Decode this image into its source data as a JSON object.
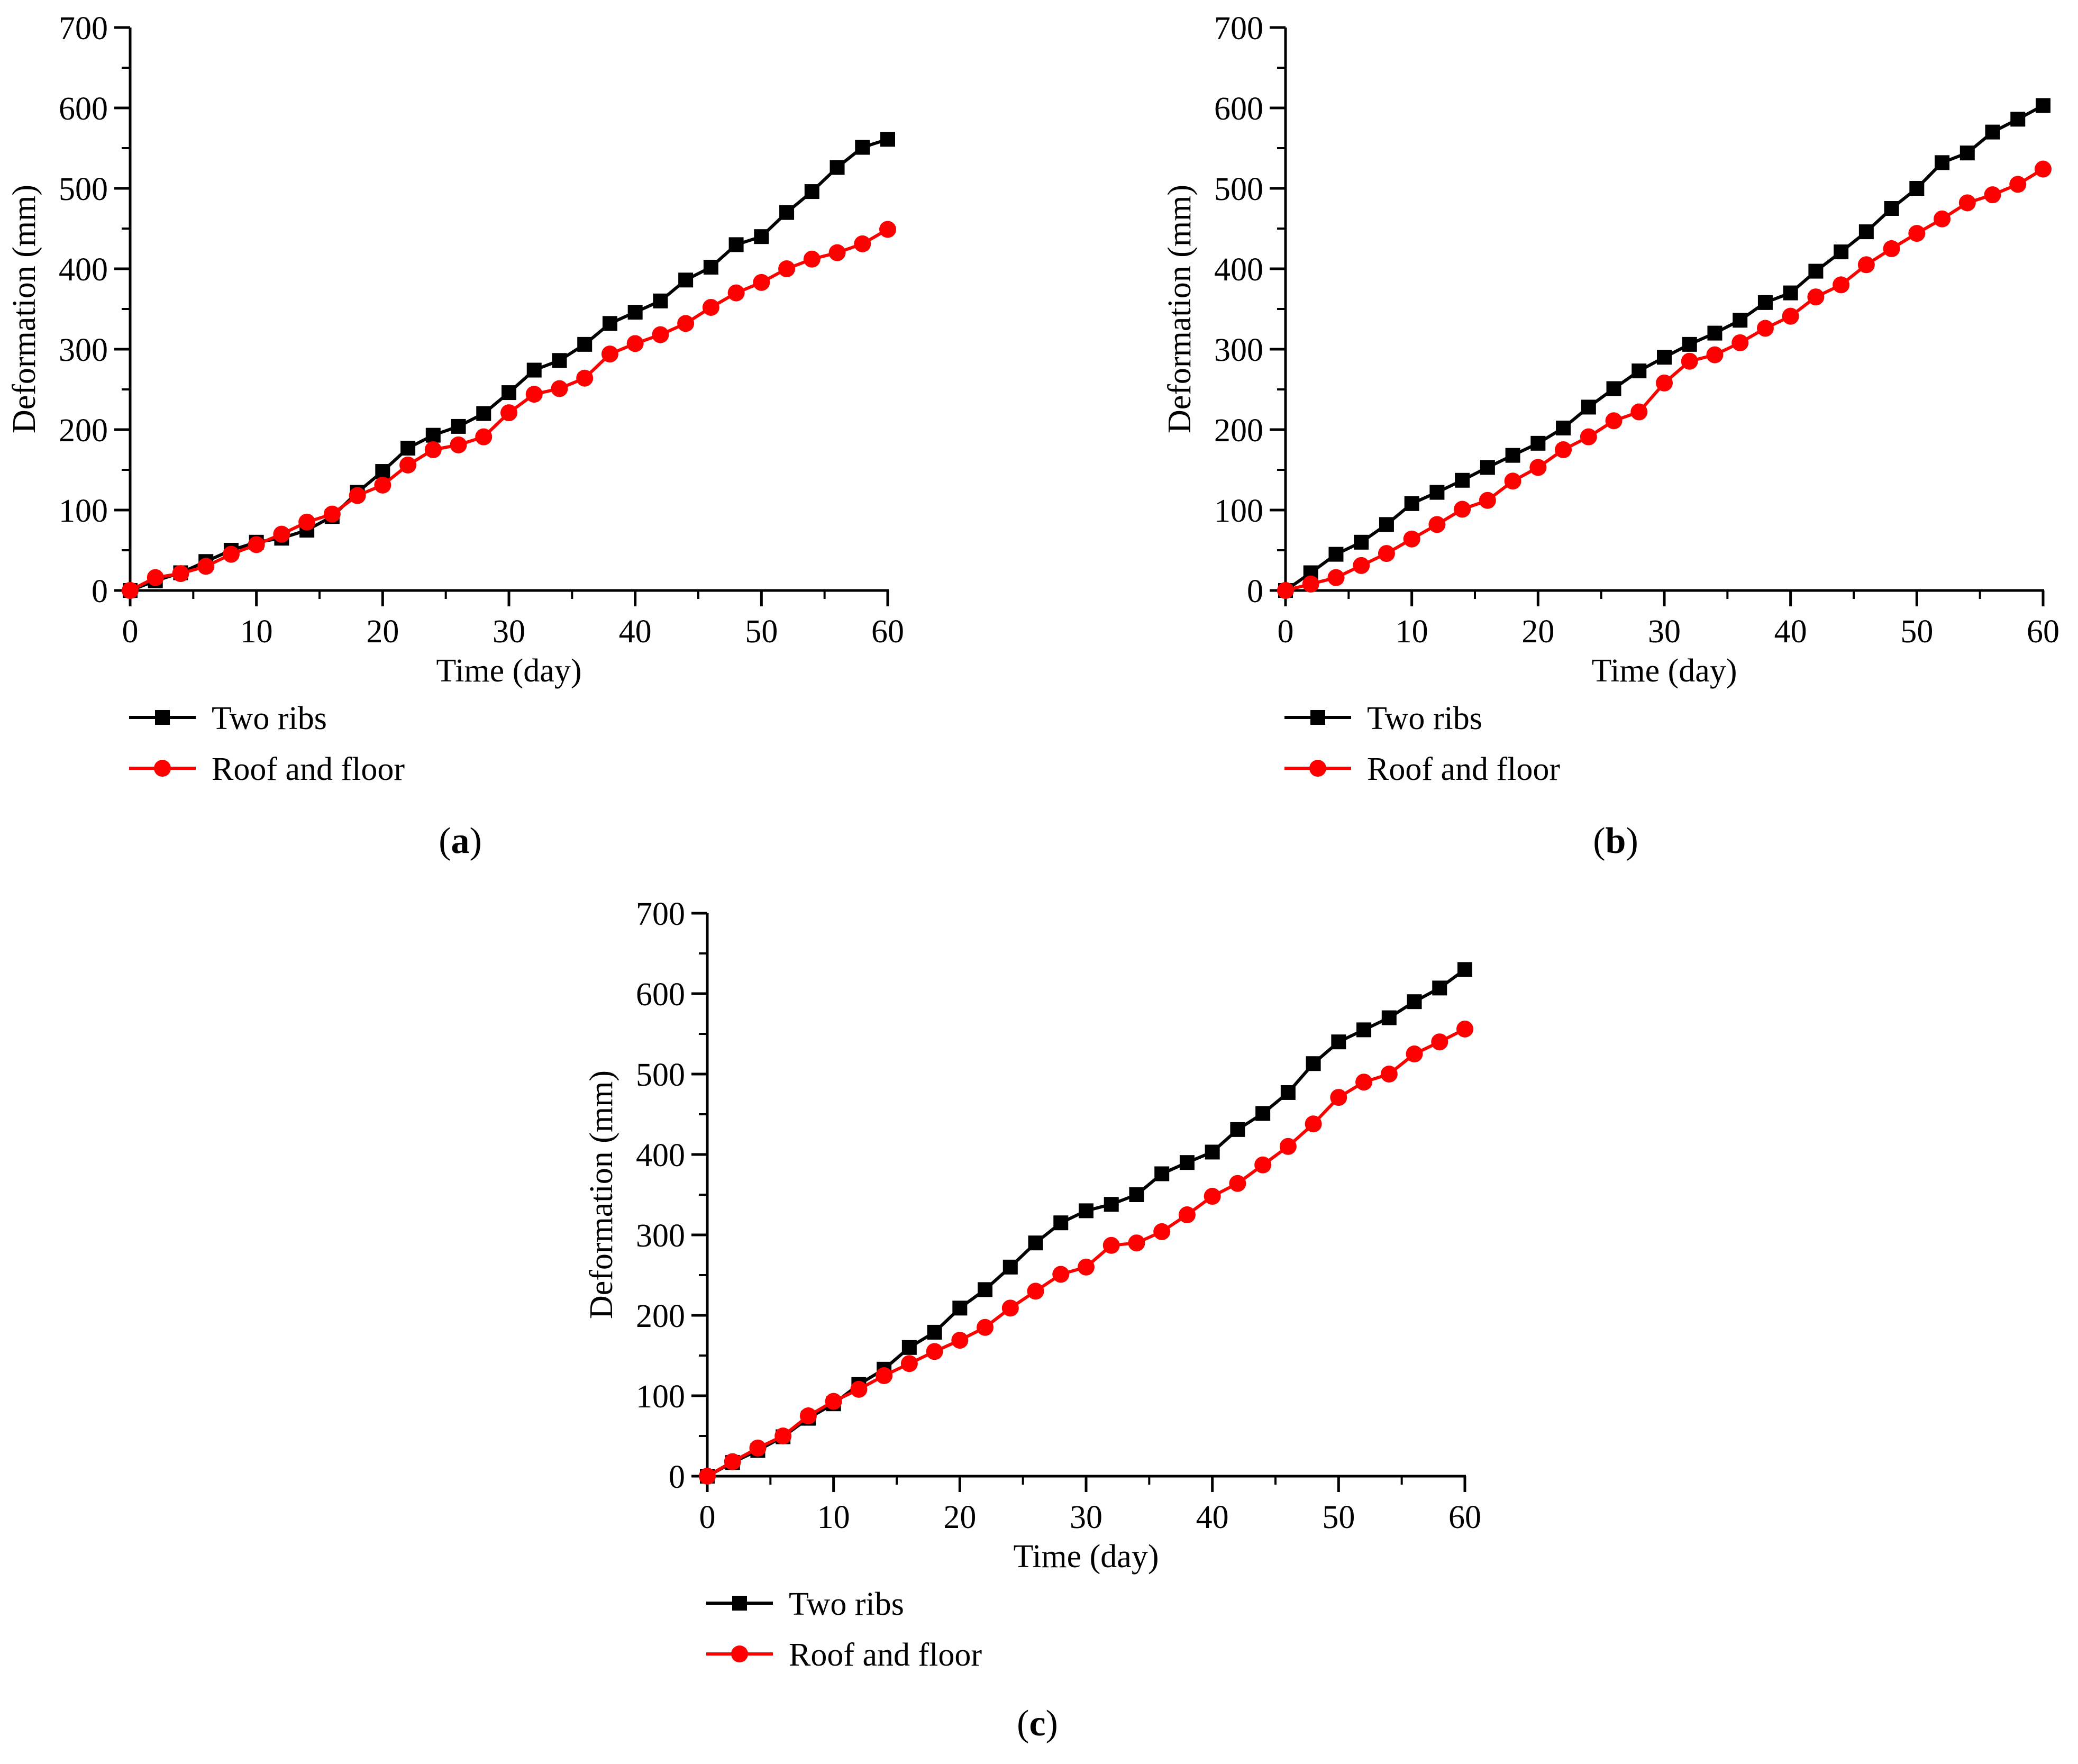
{
  "chart_data": [
    {
      "type": "line",
      "panel_label": "a",
      "xlabel": "Time (day)",
      "ylabel": "Deformation (mm)",
      "xlim": [
        0,
        60
      ],
      "ylim": [
        0,
        700
      ],
      "xticks": [
        "0",
        "10",
        "20",
        "30",
        "40",
        "50",
        "60"
      ],
      "yticks": [
        "0",
        "100",
        "200",
        "300",
        "400",
        "500",
        "600",
        "700"
      ],
      "legend_position": "bottom-left",
      "x": [
        0,
        2,
        4,
        6,
        8,
        10,
        12,
        14,
        16,
        18,
        20,
        22,
        24,
        26,
        28,
        30,
        32,
        34,
        36,
        38,
        40,
        42,
        44,
        46,
        48,
        50,
        52,
        54,
        56,
        58,
        60
      ],
      "series": [
        {
          "name": "Two ribs",
          "color": "#000000",
          "marker": "square",
          "values": [
            0,
            12,
            22,
            36,
            50,
            60,
            65,
            75,
            92,
            122,
            148,
            177,
            193,
            204,
            220,
            246,
            274,
            286,
            306,
            332,
            346,
            360,
            386,
            402,
            430,
            440,
            470,
            496,
            526,
            551,
            561
          ]
        },
        {
          "name": "Roof and floor",
          "color": "#ff0000",
          "marker": "circle",
          "values": [
            0,
            16,
            21,
            30,
            45,
            57,
            70,
            85,
            95,
            118,
            131,
            156,
            175,
            181,
            191,
            221,
            244,
            251,
            264,
            294,
            307,
            318,
            332,
            352,
            370,
            383,
            400,
            412,
            420,
            431,
            449
          ]
        }
      ]
    },
    {
      "type": "line",
      "panel_label": "b",
      "xlabel": "Time (day)",
      "ylabel": "Deformation (mm)",
      "xlim": [
        0,
        60
      ],
      "ylim": [
        0,
        700
      ],
      "xticks": [
        "0",
        "10",
        "20",
        "30",
        "40",
        "50",
        "60"
      ],
      "yticks": [
        "0",
        "100",
        "200",
        "300",
        "400",
        "500",
        "600",
        "700"
      ],
      "legend_position": "bottom-left",
      "x": [
        0,
        2,
        4,
        6,
        8,
        10,
        12,
        14,
        16,
        18,
        20,
        22,
        24,
        26,
        28,
        30,
        32,
        34,
        36,
        38,
        40,
        42,
        44,
        46,
        48,
        50,
        52,
        54,
        56,
        58,
        60
      ],
      "series": [
        {
          "name": "Two ribs",
          "color": "#000000",
          "marker": "square",
          "values": [
            0,
            22,
            45,
            60,
            82,
            108,
            122,
            137,
            153,
            168,
            183,
            202,
            228,
            251,
            273,
            290,
            306,
            320,
            336,
            358,
            370,
            397,
            421,
            446,
            475,
            500,
            532,
            544,
            570,
            586,
            603
          ]
        },
        {
          "name": "Roof and floor",
          "color": "#ff0000",
          "marker": "circle",
          "values": [
            0,
            8,
            16,
            31,
            46,
            64,
            82,
            101,
            112,
            136,
            153,
            175,
            191,
            211,
            222,
            258,
            285,
            293,
            308,
            326,
            341,
            365,
            380,
            405,
            425,
            444,
            462,
            482,
            492,
            505,
            524
          ]
        }
      ]
    },
    {
      "type": "line",
      "panel_label": "c",
      "xlabel": "Time (day)",
      "ylabel": "Deformation (mm)",
      "xlim": [
        0,
        60
      ],
      "ylim": [
        0,
        700
      ],
      "xticks": [
        "0",
        "10",
        "20",
        "30",
        "40",
        "50",
        "60"
      ],
      "yticks": [
        "0",
        "100",
        "200",
        "300",
        "400",
        "500",
        "600",
        "700"
      ],
      "legend_position": "bottom-left",
      "x": [
        0,
        2,
        4,
        6,
        8,
        10,
        12,
        14,
        16,
        18,
        20,
        22,
        24,
        26,
        28,
        30,
        32,
        34,
        36,
        38,
        40,
        42,
        44,
        46,
        48,
        50,
        52,
        54,
        56,
        58,
        60
      ],
      "series": [
        {
          "name": "Two ribs",
          "color": "#000000",
          "marker": "square",
          "values": [
            0,
            17,
            32,
            49,
            72,
            90,
            114,
            133,
            160,
            179,
            209,
            232,
            260,
            290,
            315,
            330,
            338,
            350,
            376,
            390,
            403,
            431,
            451,
            477,
            513,
            540,
            555,
            570,
            590,
            607,
            630
          ]
        },
        {
          "name": "Roof and floor",
          "color": "#ff0000",
          "marker": "circle",
          "values": [
            0,
            18,
            35,
            50,
            75,
            93,
            108,
            125,
            140,
            155,
            169,
            185,
            209,
            230,
            251,
            260,
            287,
            290,
            304,
            325,
            348,
            364,
            387,
            410,
            438,
            471,
            490,
            500,
            525,
            540,
            556
          ]
        }
      ]
    }
  ]
}
